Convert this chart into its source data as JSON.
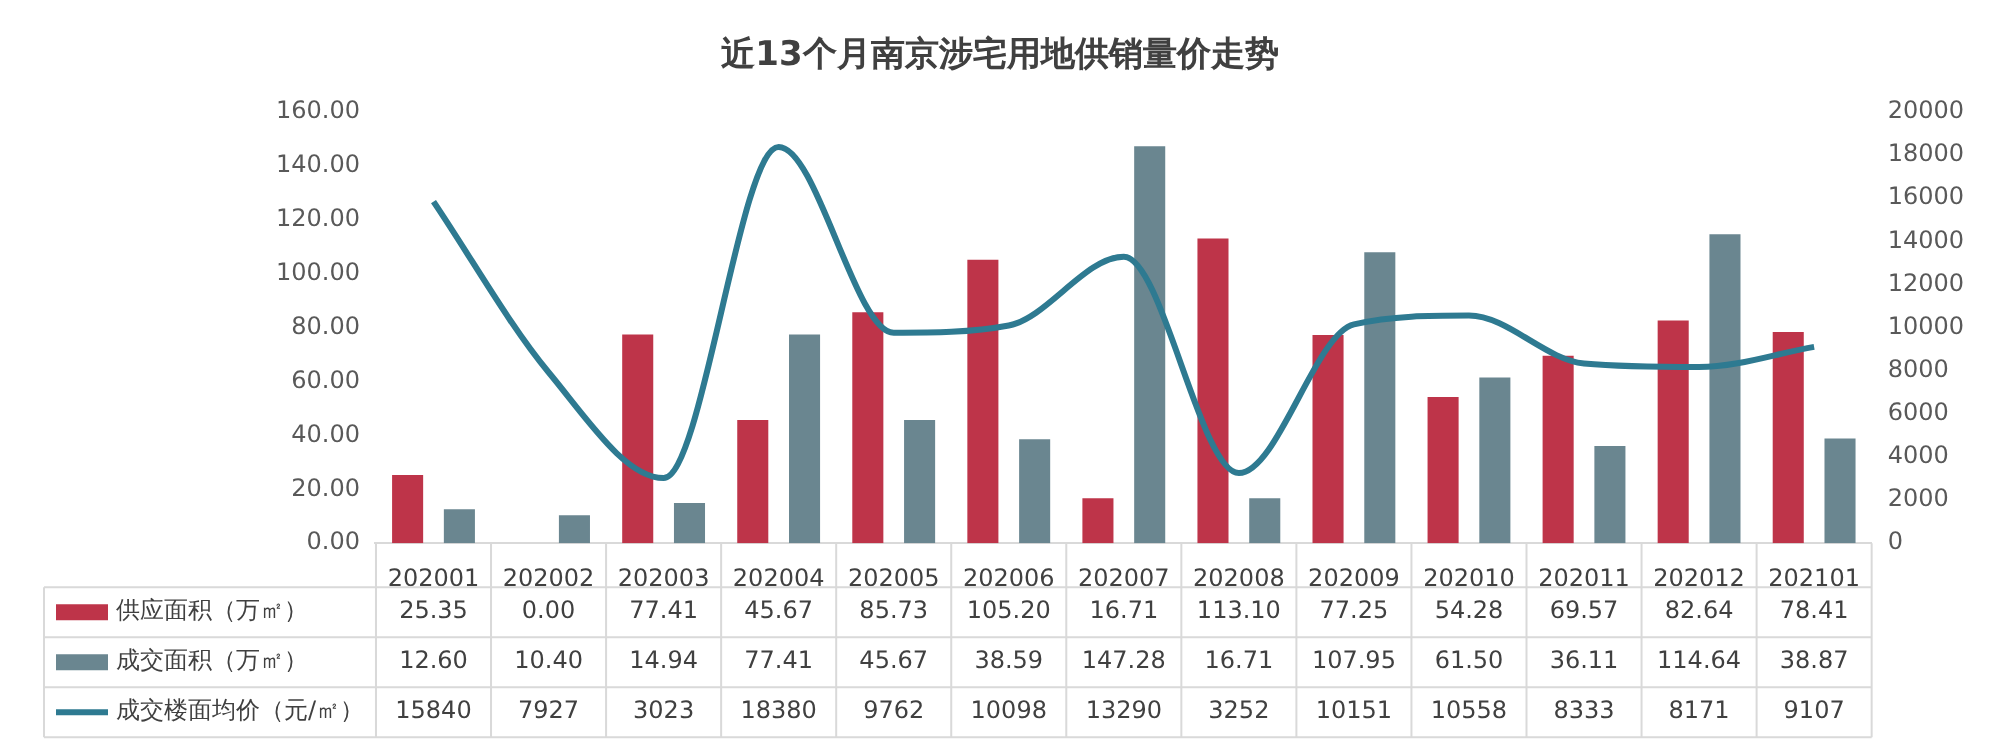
{
  "chart_data": {
    "type": "bar",
    "title": "近13个月南京涉宅用地供销量价走势",
    "categories": [
      "202001",
      "202002",
      "202003",
      "202004",
      "202005",
      "202006",
      "202007",
      "202008",
      "202009",
      "202010",
      "202011",
      "202012",
      "202101"
    ],
    "series": [
      {
        "name": "供应面积（万㎡）",
        "color": "#be3449",
        "values": [
          25.35,
          0,
          77.41,
          45.67,
          85.73,
          105.2,
          16.71,
          113.1,
          77.25,
          54.28,
          69.57,
          82.64,
          78.41
        ],
        "value_labels": [
          "25.35",
          "0.00",
          "77.41",
          "45.67",
          "85.73",
          "105.20",
          "16.71",
          "113.10",
          "77.25",
          "54.28",
          "69.57",
          "82.64",
          "78.41"
        ]
      },
      {
        "name": "成交面积（万㎡）",
        "color": "#6a8690",
        "values": [
          12.6,
          10.4,
          14.94,
          77.41,
          45.67,
          38.59,
          147.28,
          16.71,
          107.95,
          61.5,
          36.11,
          114.64,
          38.87
        ],
        "value_labels": [
          "12.60",
          "10.40",
          "14.94",
          "77.41",
          "45.67",
          "38.59",
          "147.28",
          "16.71",
          "107.95",
          "61.50",
          "36.11",
          "114.64",
          "38.87"
        ]
      },
      {
        "name": "成交楼面均价（元/㎡）",
        "type": "line",
        "axis": "y2",
        "color": "#2e7a91",
        "values": [
          15840,
          7927,
          3023,
          18380,
          9762,
          10098,
          13290,
          3252,
          10151,
          10558,
          8333,
          8171,
          9107
        ],
        "value_labels": [
          "15840",
          "7927",
          "3023",
          "18380",
          "9762",
          "10098",
          "13290",
          "3252",
          "10151",
          "10558",
          "8333",
          "8171",
          "9107"
        ]
      }
    ],
    "ylim": [
      0,
      160
    ],
    "yticks": [
      {
        "value": 0,
        "label": "0.00"
      },
      {
        "value": 20,
        "label": "20.00"
      },
      {
        "value": 40,
        "label": "40.00"
      },
      {
        "value": 60,
        "label": "60.00"
      },
      {
        "value": 80,
        "label": "80.00"
      },
      {
        "value": 100,
        "label": "100.00"
      },
      {
        "value": 120,
        "label": "120.00"
      },
      {
        "value": 140,
        "label": "140.00"
      },
      {
        "value": 160,
        "label": "160.00"
      }
    ],
    "y2lim": [
      0,
      20000
    ],
    "y2ticks": [
      0,
      2000,
      4000,
      6000,
      8000,
      10000,
      12000,
      14000,
      16000,
      18000,
      20000
    ],
    "legend": "bottom"
  }
}
